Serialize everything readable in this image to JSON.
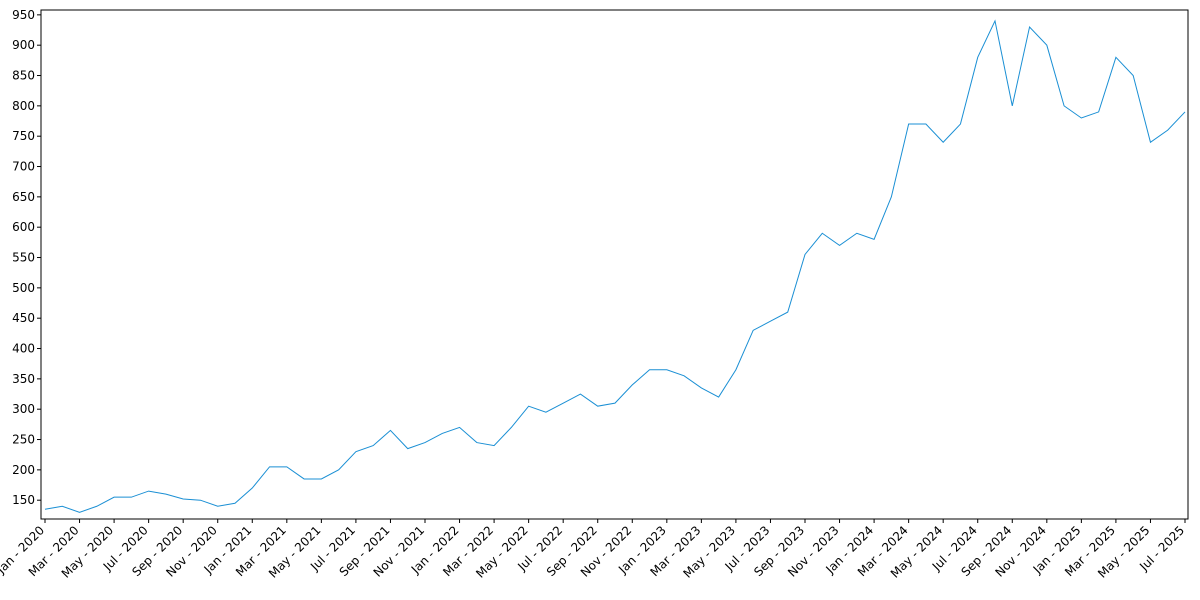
{
  "chart_data": {
    "type": "line",
    "x": [
      "2020-01",
      "2020-02",
      "2020-03",
      "2020-04",
      "2020-05",
      "2020-06",
      "2020-07",
      "2020-08",
      "2020-09",
      "2020-10",
      "2020-11",
      "2020-12",
      "2021-01",
      "2021-02",
      "2021-03",
      "2021-04",
      "2021-05",
      "2021-06",
      "2021-07",
      "2021-08",
      "2021-09",
      "2021-10",
      "2021-11",
      "2021-12",
      "2022-01",
      "2022-02",
      "2022-03",
      "2022-04",
      "2022-05",
      "2022-06",
      "2022-07",
      "2022-08",
      "2022-09",
      "2022-10",
      "2022-11",
      "2022-12",
      "2023-01",
      "2023-02",
      "2023-03",
      "2023-04",
      "2023-05",
      "2023-06",
      "2023-07",
      "2023-08",
      "2023-09",
      "2023-10",
      "2023-11",
      "2023-12",
      "2024-01",
      "2024-02",
      "2024-03",
      "2024-04",
      "2024-05",
      "2024-06",
      "2024-07",
      "2024-08",
      "2024-09",
      "2024-10",
      "2024-11",
      "2024-12",
      "2025-01",
      "2025-02",
      "2025-03",
      "2025-04",
      "2025-05",
      "2025-06",
      "2025-07"
    ],
    "series": [
      {
        "color": "#1a8fd4",
        "values": [
          135,
          140,
          130,
          140,
          155,
          155,
          165,
          160,
          152,
          150,
          140,
          145,
          170,
          205,
          205,
          185,
          185,
          200,
          230,
          240,
          265,
          235,
          245,
          260,
          270,
          245,
          240,
          270,
          305,
          295,
          310,
          325,
          305,
          310,
          340,
          365,
          365,
          355,
          335,
          320,
          365,
          430,
          445,
          460,
          555,
          590,
          570,
          590,
          580,
          650,
          770,
          770,
          740,
          770,
          880,
          940,
          800,
          930,
          900,
          800,
          780,
          790,
          880,
          850,
          740,
          760,
          790
        ]
      }
    ],
    "xlim": [
      "2020-01",
      "2025-07"
    ],
    "xticks": [
      {
        "value": "2020-01",
        "label": "Jan - 2020"
      },
      {
        "value": "2020-03",
        "label": "Mar - 2020"
      },
      {
        "value": "2020-05",
        "label": "May - 2020"
      },
      {
        "value": "2020-07",
        "label": "Jul - 2020"
      },
      {
        "value": "2020-09",
        "label": "Sep - 2020"
      },
      {
        "value": "2020-11",
        "label": "Nov - 2020"
      },
      {
        "value": "2021-01",
        "label": "Jan - 2021"
      },
      {
        "value": "2021-03",
        "label": "Mar - 2021"
      },
      {
        "value": "2021-05",
        "label": "May - 2021"
      },
      {
        "value": "2021-07",
        "label": "Jul - 2021"
      },
      {
        "value": "2021-09",
        "label": "Sep - 2021"
      },
      {
        "value": "2021-11",
        "label": "Nov - 2021"
      },
      {
        "value": "2022-01",
        "label": "Jan - 2022"
      },
      {
        "value": "2022-03",
        "label": "Mar - 2022"
      },
      {
        "value": "2022-05",
        "label": "May - 2022"
      },
      {
        "value": "2022-07",
        "label": "Jul - 2022"
      },
      {
        "value": "2022-09",
        "label": "Sep - 2022"
      },
      {
        "value": "2022-11",
        "label": "Nov - 2022"
      },
      {
        "value": "2023-01",
        "label": "Jan - 2023"
      },
      {
        "value": "2023-03",
        "label": "Mar - 2023"
      },
      {
        "value": "2023-05",
        "label": "May - 2023"
      },
      {
        "value": "2023-07",
        "label": "Jul - 2023"
      },
      {
        "value": "2023-09",
        "label": "Sep - 2023"
      },
      {
        "value": "2023-11",
        "label": "Nov - 2023"
      },
      {
        "value": "2024-01",
        "label": "Jan - 2024"
      },
      {
        "value": "2024-03",
        "label": "Mar - 2024"
      },
      {
        "value": "2024-05",
        "label": "May - 2024"
      },
      {
        "value": "2024-07",
        "label": "Jul - 2024"
      },
      {
        "value": "2024-09",
        "label": "Sep - 2024"
      },
      {
        "value": "2024-11",
        "label": "Nov - 2024"
      },
      {
        "value": "2025-01",
        "label": "Jan - 2025"
      },
      {
        "value": "2025-03",
        "label": "Mar - 2025"
      },
      {
        "value": "2025-05",
        "label": "May - 2025"
      },
      {
        "value": "2025-07",
        "label": "Jul - 2025"
      }
    ],
    "ylim": [
      119,
      958
    ],
    "yticks": [
      150,
      200,
      250,
      300,
      350,
      400,
      450,
      500,
      550,
      600,
      650,
      700,
      750,
      800,
      850,
      900,
      950
    ],
    "grid": false
  }
}
